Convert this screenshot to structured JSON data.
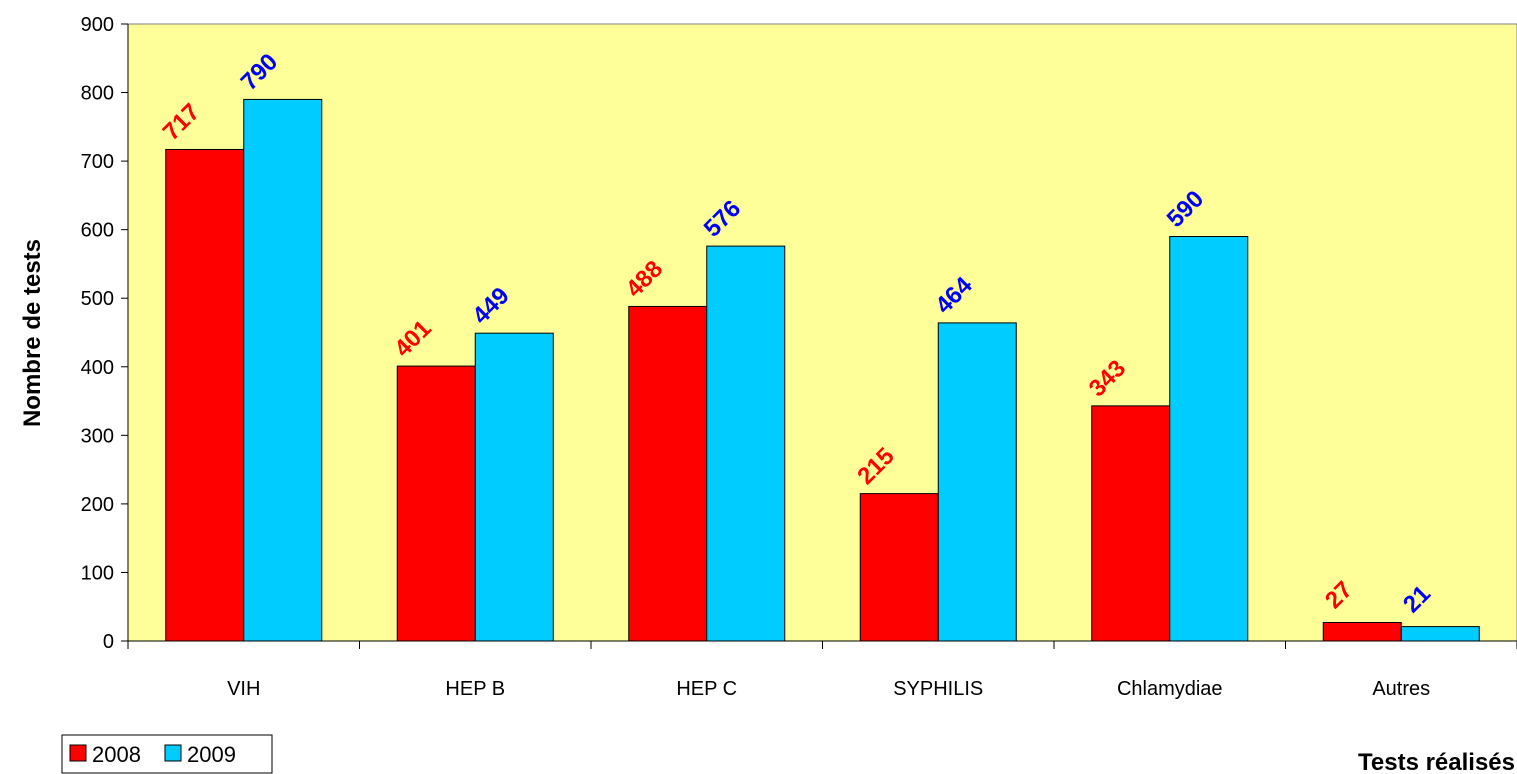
{
  "chart_data": {
    "type": "bar",
    "categories": [
      "VIH",
      "HEP B",
      "HEP C",
      "SYPHILIS",
      "Chlamydiae",
      "Autres"
    ],
    "series": [
      {
        "name": "2008",
        "color": "#ff0000",
        "label_color": "#ff0000",
        "values": [
          717,
          401,
          488,
          215,
          343,
          27
        ]
      },
      {
        "name": "2009",
        "color": "#00ccff",
        "label_color": "#0000ff",
        "values": [
          790,
          449,
          576,
          464,
          590,
          21
        ]
      }
    ],
    "xlabel": "Tests réalisés",
    "ylabel": "Nombre de tests",
    "ylim": [
      0,
      900
    ],
    "yticks": [
      0,
      100,
      200,
      300,
      400,
      500,
      600,
      700,
      800,
      900
    ],
    "plot_background": "#ffff99",
    "grid": false,
    "legend_position": "bottom-left",
    "data_labels": true
  }
}
